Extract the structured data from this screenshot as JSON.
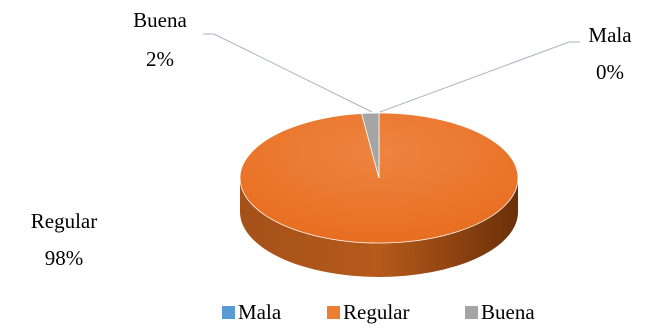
{
  "chart_data": {
    "type": "pie",
    "style": "3d",
    "title": "",
    "categories": [
      "Mala",
      "Regular",
      "Buena"
    ],
    "values": [
      0,
      98,
      2
    ],
    "value_labels": [
      "0%",
      "98%",
      "2%"
    ],
    "colors": [
      "#5b9bd5",
      "#ed7d31",
      "#a5a5a5"
    ],
    "legend": {
      "position": "bottom",
      "items": [
        "Mala",
        "Regular",
        "Buena"
      ]
    }
  }
}
